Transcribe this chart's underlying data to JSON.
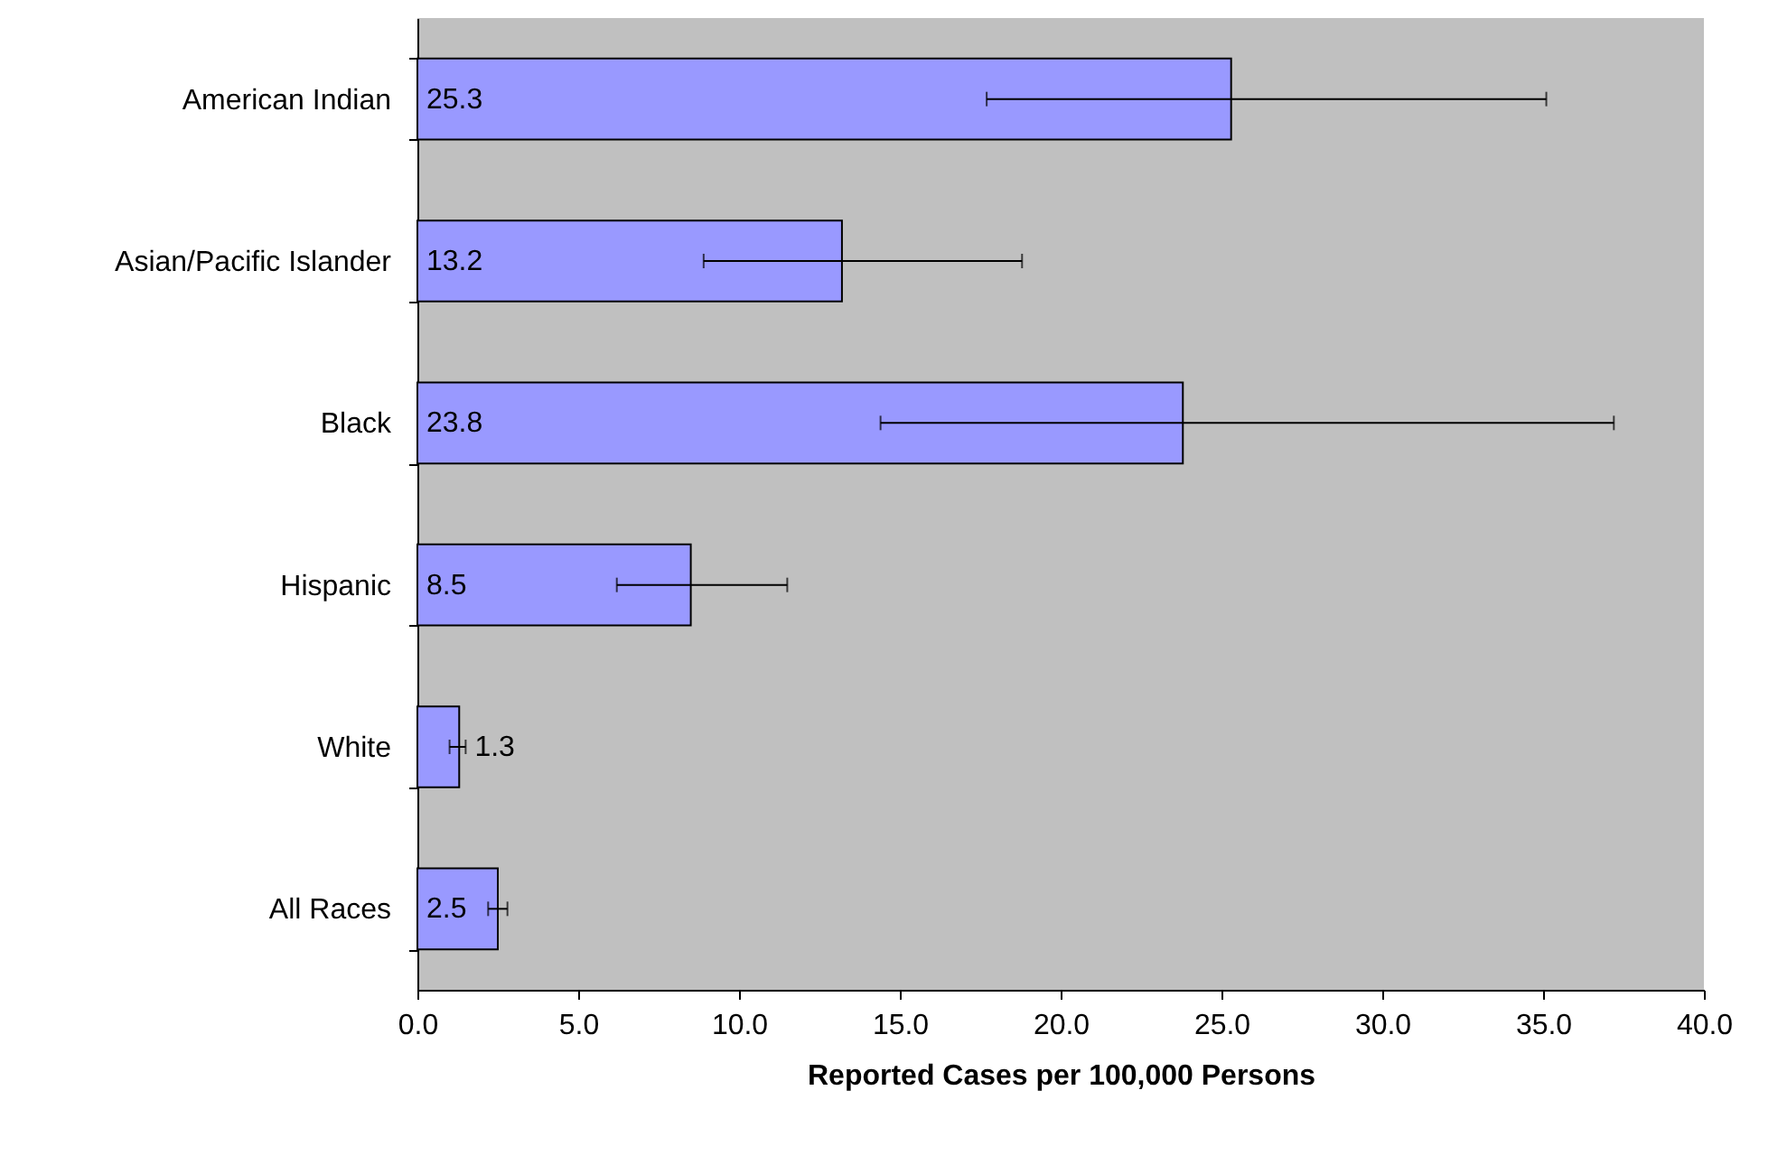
{
  "chart_data": {
    "type": "bar",
    "orientation": "horizontal",
    "xlabel": "Reported Cases per 100,000 Persons",
    "categories": [
      "American Indian",
      "Asian/Pacific Islander",
      "Black",
      "Hispanic",
      "White",
      "All Races"
    ],
    "values": [
      25.3,
      13.2,
      23.8,
      8.5,
      1.3,
      2.5
    ],
    "errors": [
      [
        17.7,
        35.1
      ],
      [
        8.9,
        18.8
      ],
      [
        14.4,
        37.2
      ],
      [
        6.2,
        11.5
      ],
      [
        1.0,
        1.5
      ],
      [
        2.2,
        2.8
      ]
    ],
    "color": "#9999ff",
    "data_labels": true,
    "grid": false,
    "xlim": [
      0,
      40
    ],
    "xticks": [
      {
        "value": 0,
        "label": "0.0"
      },
      {
        "value": 5,
        "label": "5.0"
      },
      {
        "value": 10,
        "label": "10.0"
      },
      {
        "value": 15,
        "label": "15.0"
      },
      {
        "value": 20,
        "label": "20.0"
      },
      {
        "value": 25,
        "label": "25.0"
      },
      {
        "value": 30,
        "label": "30.0"
      },
      {
        "value": 35,
        "label": "35.0"
      },
      {
        "value": 40,
        "label": "40.0"
      }
    ]
  }
}
